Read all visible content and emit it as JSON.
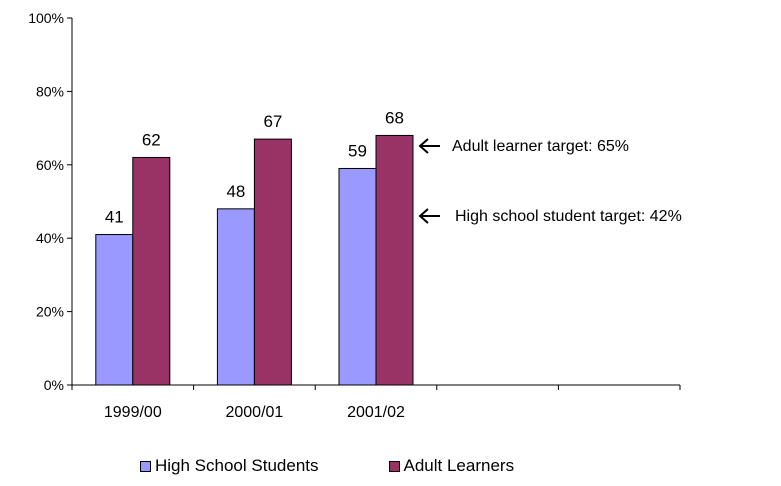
{
  "chart_data": {
    "type": "bar",
    "categories": [
      "1999/00",
      "2000/01",
      "2001/02",
      "",
      ""
    ],
    "series": [
      {
        "name": "High School Students",
        "values": [
          41,
          48,
          59,
          null,
          null
        ],
        "color": "#9999ff"
      },
      {
        "name": "Adult Learners",
        "values": [
          62,
          67,
          68,
          null,
          null
        ],
        "color": "#993366"
      }
    ],
    "data_labels": [
      [
        "41",
        "48",
        "59"
      ],
      [
        "62",
        "67",
        "68"
      ]
    ],
    "yticks": [
      "0%",
      "20%",
      "40%",
      "60%",
      "80%",
      "100%"
    ],
    "ylim": [
      0,
      100
    ],
    "grid": false,
    "legend_position": "bottom",
    "annotations": [
      {
        "text": "Adult learner target:  65%",
        "value": 65,
        "arrow": "left"
      },
      {
        "text": "High school student target:  42%",
        "value": 42,
        "arrow": "left"
      }
    ]
  }
}
